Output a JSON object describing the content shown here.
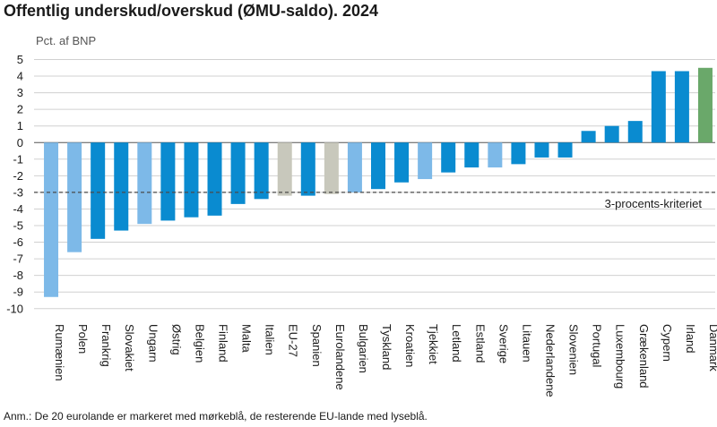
{
  "title": "Offentlig underskud/overskud (ØMU-saldo). 2024",
  "unit_label": "Pct. af BNP",
  "note": "Anm.: De 20 eurolande er markeret med mørkeblå, de resterende EU-lande med lyseblå.",
  "colors": {
    "euro": "#0a8bd0",
    "non_euro": "#7db9e8",
    "aggregate": "#c8c8bc",
    "denmark": "#6aa86a",
    "grid": "#d0d0d0",
    "reference": "#4a4a4a"
  },
  "chart_data": {
    "type": "bar",
    "title": "Offentlig underskud/overskud (ØMU-saldo). 2024",
    "ylabel": "Pct. af BNP",
    "xlabel": "",
    "ylim": [
      -10,
      5
    ],
    "yticks": [
      5,
      4,
      3,
      2,
      1,
      0,
      -1,
      -2,
      -3,
      -4,
      -5,
      -6,
      -7,
      -8,
      -9,
      -10
    ],
    "grid": true,
    "categories": [
      "Rumænien",
      "Polen",
      "Frankrig",
      "Slovakiet",
      "Ungarn",
      "Østrig",
      "Belgien",
      "Finland",
      "Malta",
      "Italien",
      "EU-27",
      "Spanien",
      "Eurolandene",
      "Bulgarien",
      "Tyskland",
      "Kroatien",
      "Tjekkiet",
      "Letland",
      "Estland",
      "Sverige",
      "Litauen",
      "Nederlandene",
      "Slovenien",
      "Portugal",
      "Luxembourg",
      "Grækenland",
      "Cypern",
      "Irland",
      "Danmark"
    ],
    "values": [
      -9.3,
      -6.6,
      -5.8,
      -5.3,
      -4.9,
      -4.7,
      -4.5,
      -4.4,
      -3.7,
      -3.4,
      -3.2,
      -3.2,
      -3.1,
      -3.0,
      -2.8,
      -2.4,
      -2.2,
      -1.8,
      -1.5,
      -1.5,
      -1.3,
      -0.9,
      -0.9,
      0.7,
      1.0,
      1.3,
      4.3,
      4.3,
      4.5
    ],
    "groups": [
      "non_euro",
      "non_euro",
      "euro",
      "euro",
      "non_euro",
      "euro",
      "euro",
      "euro",
      "euro",
      "euro",
      "aggregate",
      "euro",
      "aggregate",
      "non_euro",
      "euro",
      "euro",
      "non_euro",
      "euro",
      "euro",
      "non_euro",
      "euro",
      "euro",
      "euro",
      "euro",
      "euro",
      "euro",
      "euro",
      "euro",
      "denmark"
    ],
    "reference_line": {
      "value": -3,
      "label": "3-procents-kriteriet"
    }
  }
}
